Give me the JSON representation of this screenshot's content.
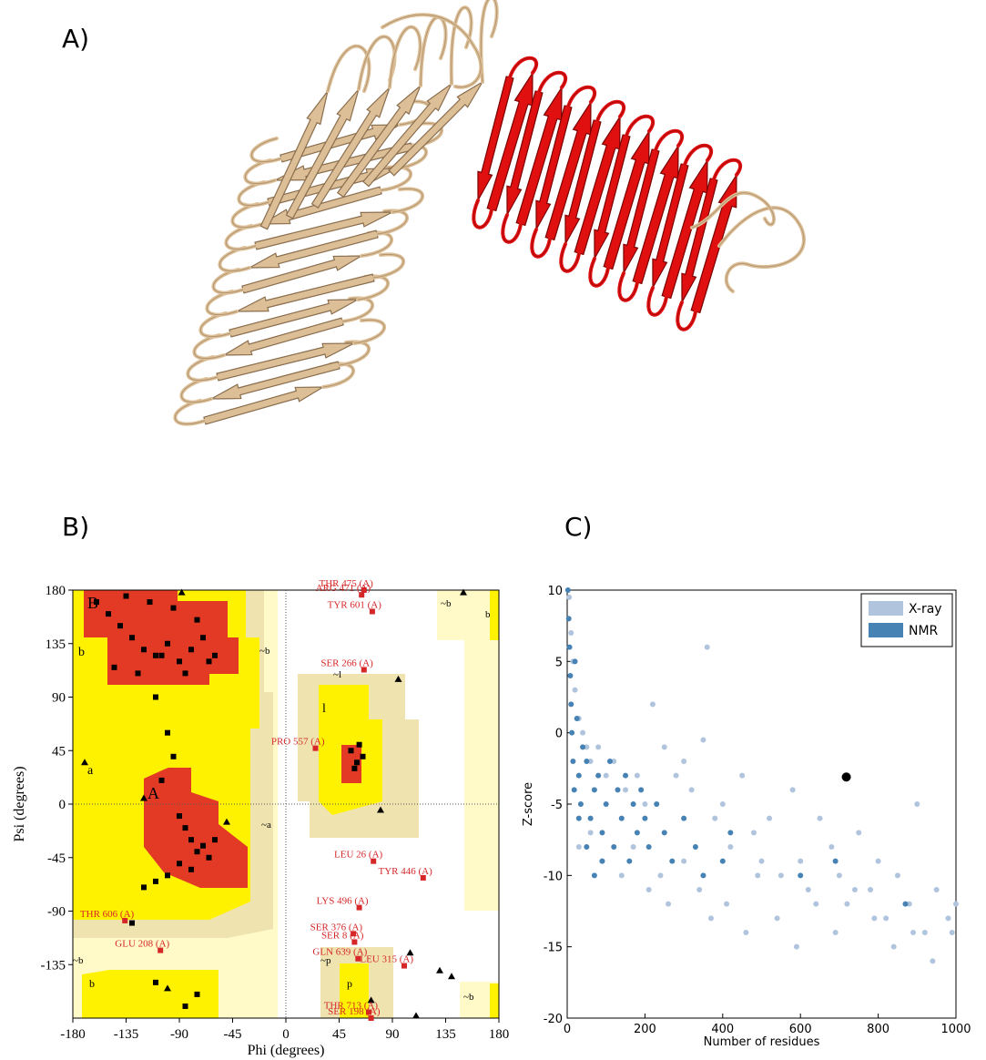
{
  "panels": {
    "a": "A)",
    "b": "B)",
    "c": "C)"
  },
  "chart_data": [
    {
      "type": "ramachandran",
      "xlabel": "Phi (degrees)",
      "ylabel": "Psi (degrees)",
      "xlim": [
        -180,
        180
      ],
      "ylim": [
        -180,
        180
      ],
      "xticks": [
        -180,
        -135,
        -90,
        -45,
        0,
        45,
        90,
        135,
        180
      ],
      "yticks": [
        -135,
        -90,
        -45,
        0,
        45,
        90,
        135,
        180
      ],
      "region_labels": [
        "B",
        "b",
        "A",
        "a",
        "~b",
        "~b",
        "~b",
        "~b",
        "b",
        "b",
        "l",
        "~l",
        "~a",
        "~p",
        "p"
      ],
      "series": [
        {
          "marker": "square",
          "color": "#000000",
          "x": [
            -160,
            -150,
            -140,
            -130,
            -120,
            -110,
            -100,
            -90,
            -80,
            -70,
            -60,
            -145,
            -125,
            -105,
            -85,
            -65,
            -135,
            -115,
            -95,
            -75,
            -110,
            -100,
            -95,
            -105,
            -90,
            -85,
            -80,
            -75,
            -70,
            -65,
            -60,
            -90,
            -80,
            -100,
            -110,
            -120,
            55,
            60,
            65,
            58,
            62,
            -130,
            -85,
            -110,
            -75
          ],
          "y": [
            170,
            160,
            150,
            140,
            130,
            125,
            135,
            120,
            130,
            140,
            125,
            115,
            110,
            125,
            110,
            120,
            175,
            170,
            165,
            155,
            90,
            60,
            40,
            20,
            -10,
            -20,
            -30,
            -40,
            -35,
            -45,
            -30,
            -50,
            -55,
            -60,
            -65,
            -70,
            45,
            35,
            40,
            30,
            50,
            -100,
            -170,
            -150,
            -160
          ]
        },
        {
          "marker": "triangle",
          "color": "#000000",
          "x": [
            -88,
            -170,
            -50,
            95,
            105,
            130,
            150,
            80,
            -100,
            72,
            140,
            -120,
            110
          ],
          "y": [
            178,
            35,
            -15,
            105,
            -125,
            -140,
            178,
            -5,
            -155,
            -165,
            -145,
            5,
            -178
          ]
        }
      ],
      "outliers": {
        "color": "#d62728",
        "labels": [
          "THR 475 (A)",
          "ARG 471 (A)",
          "TYR 601 (A)",
          "SER 266 (A)",
          "PRO 557 (A)",
          "LEU 26 (A)",
          "TYR 446 (A)",
          "LYS 496 (A)",
          "SER 376 (A)",
          "SER 8 (A)",
          "GLN 639 (A)",
          "LEU 315 (A)",
          "THR 606 (A)",
          "GLU 208 (A)",
          "THR 713 (A)",
          "SER 198 (A)"
        ],
        "x": [
          66,
          64,
          73,
          66,
          25,
          74,
          116,
          62,
          57,
          58,
          61,
          100,
          -136,
          -106,
          70,
          72
        ],
        "y": [
          180,
          176,
          162,
          113,
          47,
          -48,
          -62,
          -87,
          -109,
          -116,
          -130,
          -136,
          -98,
          -123,
          -175,
          -180
        ]
      }
    },
    {
      "type": "scatter",
      "xlabel": "Number of residues",
      "ylabel": "Z-score",
      "xlim": [
        0,
        1000
      ],
      "ylim": [
        -20,
        10
      ],
      "xticks": [
        0,
        200,
        400,
        600,
        800,
        1000
      ],
      "yticks": [
        -20,
        -15,
        -10,
        -5,
        0,
        5,
        10
      ],
      "legend": "upper right",
      "series": [
        {
          "name": "X-ray",
          "color": "#b0c4de",
          "x": [
            5,
            10,
            15,
            20,
            30,
            40,
            50,
            60,
            80,
            100,
            120,
            150,
            180,
            200,
            220,
            250,
            280,
            300,
            320,
            350,
            380,
            400,
            420,
            450,
            480,
            500,
            520,
            550,
            580,
            600,
            620,
            650,
            680,
            700,
            720,
            750,
            780,
            800,
            820,
            850,
            880,
            900,
            920,
            950,
            980,
            1000,
            30,
            60,
            90,
            140,
            170,
            210,
            240,
            260,
            300,
            340,
            360,
            370,
            410,
            460,
            490,
            540,
            590,
            640,
            690,
            740,
            790,
            840,
            890,
            940,
            990
          ],
          "y": [
            9.5,
            7,
            5,
            3,
            1,
            0,
            -1,
            -2,
            -1,
            -3,
            -2,
            -4,
            -3,
            -5,
            2,
            -1,
            -3,
            -2,
            -4,
            -0.5,
            -6,
            -5,
            -8,
            -3,
            -7,
            -9,
            -6,
            -10,
            -4,
            -9,
            -11,
            -6,
            -8,
            -10,
            -12,
            -7,
            -11,
            -9,
            -13,
            -10,
            -12,
            -5,
            -14,
            -11,
            -13,
            -12,
            -8,
            -7,
            -9,
            -10,
            -8,
            -11,
            -10,
            -12,
            -9,
            -11,
            6,
            -13,
            -12,
            -14,
            -10,
            -13,
            -15,
            -12,
            -14,
            -11,
            -13,
            -15,
            -14,
            -16,
            -14
          ]
        },
        {
          "name": "NMR",
          "color": "#4682b4",
          "x": [
            2,
            4,
            6,
            8,
            10,
            12,
            15,
            18,
            20,
            25,
            30,
            35,
            40,
            50,
            60,
            70,
            80,
            90,
            100,
            110,
            120,
            130,
            140,
            150,
            160,
            170,
            180,
            190,
            200,
            210,
            230,
            250,
            270,
            300,
            330,
            350,
            400,
            420,
            600,
            690,
            870,
            30,
            50,
            70,
            90
          ],
          "y": [
            10,
            8,
            6,
            4,
            2,
            0,
            -2,
            -4,
            5,
            1,
            -3,
            -5,
            -1,
            -2,
            -6,
            -4,
            -3,
            -7,
            -5,
            -2,
            -8,
            -4,
            -6,
            -3,
            -9,
            -5,
            -7,
            -4,
            -6,
            -8,
            -5,
            -7,
            -9,
            -6,
            -8,
            -10,
            -9,
            -7,
            -10,
            -9,
            -12,
            -6,
            -8,
            -10,
            -9
          ]
        }
      ],
      "point": {
        "x": 718,
        "y": -3.1,
        "color": "#000000"
      }
    }
  ]
}
